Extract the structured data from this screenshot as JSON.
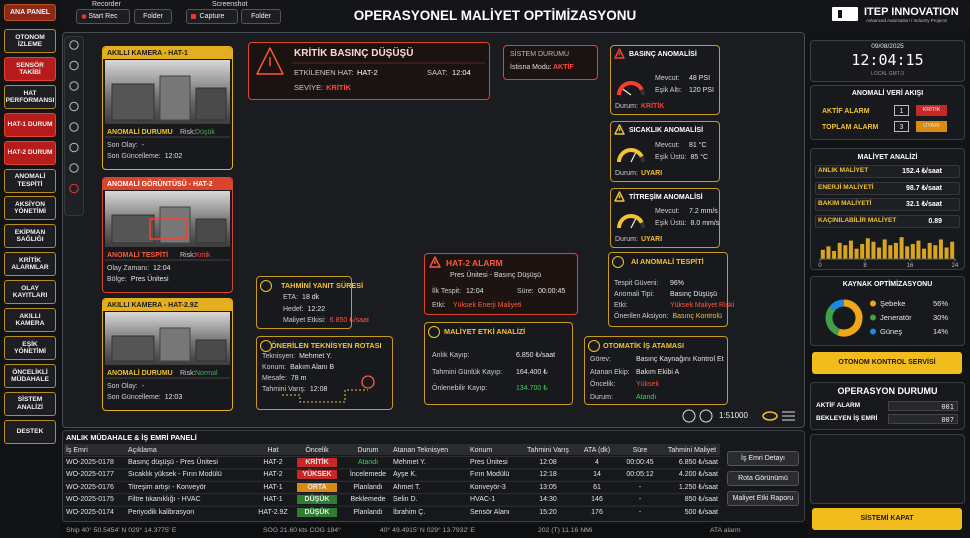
{
  "sidebar": {
    "home": "ANA PANEL",
    "items": [
      {
        "label": "OTONOM İZLEME",
        "highlight": false
      },
      {
        "label": "SENSÖR TAKİBİ",
        "highlight": true
      },
      {
        "label": "HAT PERFORMANSI",
        "highlight": false
      },
      {
        "label": "HAT-1 DURUM",
        "highlight": true
      },
      {
        "label": "HAT-2 DURUM",
        "highlight": true
      },
      {
        "label": "ANOMALİ TESPİTİ",
        "highlight": false
      },
      {
        "label": "AKSİYON YÖNETİMİ",
        "highlight": false
      },
      {
        "label": "EKİPMAN SAĞLIĞI",
        "highlight": false
      },
      {
        "label": "KRİTİK ALARMLAR",
        "highlight": false
      },
      {
        "label": "OLAY KAYITLARI",
        "highlight": false
      },
      {
        "label": "AKILLI KAMERA",
        "highlight": false
      },
      {
        "label": "EŞİK YÖNETİMİ",
        "highlight": false
      },
      {
        "label": "ÖNCELİKLİ MÜDAHALE",
        "highlight": false
      },
      {
        "label": "SİSTEM ANALİZİ",
        "highlight": false
      },
      {
        "label": "DESTEK",
        "highlight": false
      }
    ]
  },
  "toolbar": {
    "recorder": {
      "title": "Recorder",
      "start": "Start Rec",
      "folder": "Folder"
    },
    "screenshot": {
      "title": "Screenshot",
      "capture": "Capture",
      "folder": "Folder"
    }
  },
  "title": "OPERASYONEL MALİYET OPTİMİZASYONU",
  "brand": {
    "name": "ITEP INNOVATION",
    "tagline": "Advanced Automation / Industry Projects"
  },
  "cameras": [
    {
      "title": "AKILLI KAMERA - HAT-1",
      "status": "ANOMALİ DURUMU",
      "risk_label": "Risk:",
      "risk": "Düşük",
      "risk_color": "#4caf50",
      "tone": "#e3ae1f",
      "fields": [
        {
          "label": "Son Olay:",
          "value": "-"
        },
        {
          "label": "Son Güncelleme:",
          "value": "12:02"
        }
      ]
    },
    {
      "title": "ANOMALİ GÖRÜNTÜSÜ - HAT-2",
      "status": "ANOMALİ TESPİTİ",
      "risk_label": "Risk:",
      "risk": "Kritik",
      "risk_color": "#ff4a3a",
      "tone": "#d9452c",
      "fields": [
        {
          "label": "Olay Zamanı:",
          "value": "12:04"
        },
        {
          "label": "Bölge:",
          "value": "Pres Ünitesi"
        }
      ]
    },
    {
      "title": "AKILLI KAMERA - HAT-2.9Z",
      "status": "ANOMALİ DURUMU",
      "risk_label": "Risk:",
      "risk": "Normal",
      "risk_color": "#4caf50",
      "tone": "#e3ae1f",
      "fields": [
        {
          "label": "Son Olay:",
          "value": "-"
        },
        {
          "label": "Son Güncelleme:",
          "value": "12:03"
        }
      ]
    }
  ],
  "critical": {
    "title": "KRİTİK BASINÇ DÜŞÜŞÜ",
    "line_label": "ETKİLENEN HAT:",
    "line": "HAT-2",
    "time_label": "SAAT:",
    "time": "12:04",
    "level_label": "SEVİYE:",
    "level": "KRİTİK"
  },
  "system": {
    "title": "SİSTEM DURUMU",
    "mode_label": "İstisna Modu:",
    "mode": "AKTİF"
  },
  "sensors": [
    {
      "title": "BASINÇ ANOMALİSİ",
      "fields": [
        {
          "label": "Mevcut:",
          "value": "48 PSI"
        },
        {
          "label": "Eşik Altı:",
          "value": "120 PSI"
        }
      ],
      "status_label": "Durum:",
      "status": "KRİTİK",
      "color": "#ff3b2f"
    },
    {
      "title": "SICAKLIK ANOMALİSİ",
      "fields": [
        {
          "label": "Mevcut:",
          "value": "81 °C"
        },
        {
          "label": "Eşik Üstü:",
          "value": "85 °C"
        }
      ],
      "status_label": "Durum:",
      "status": "UYARI",
      "color": "#f2c230"
    },
    {
      "title": "TİTREŞİM ANOMALİSİ",
      "fields": [
        {
          "label": "Mevcut:",
          "value": "7.2 mm/s"
        },
        {
          "label": "Eşik Üstü:",
          "value": "8.0 mm/s"
        }
      ],
      "status_label": "Durum:",
      "status": "UYARI",
      "color": "#f2c230"
    }
  ],
  "alarm": {
    "title": "HAT-2 ALARM",
    "subtitle": "Pres Ünitesi - Basınç Düşüşü",
    "first_label": "İlk Tespit:",
    "first": "12:04",
    "duration_label": "Süre:",
    "duration": "00:00:45",
    "impact_label": "Etki:",
    "impact": "Yüksek Enerji Maliyeti"
  },
  "ai": {
    "title": "AI ANOMALİ TESPİTİ",
    "fields": [
      {
        "label": "Tespit Güveni:",
        "value": "96%"
      },
      {
        "label": "Anomali Tipi:",
        "value": "Basınç Düşüşü"
      },
      {
        "label": "Etki:",
        "value": "Yüksek Maliyet Riski",
        "color": "#ff5a3a"
      },
      {
        "label": "Önerilen Aksiyon:",
        "value": "Basınç Kontrolü",
        "color": "#f2c230"
      }
    ]
  },
  "eta": {
    "title": "TAHMİNİ YANIT SÜRESİ",
    "fields": [
      {
        "label": "ETA:",
        "value": "18 dk"
      },
      {
        "label": "Hedef:",
        "value": "12:22"
      },
      {
        "label": "Maliyet Etkisi:",
        "value": "6.850 ₺/saat",
        "color": "#ff5a3a"
      }
    ]
  },
  "route": {
    "title": "ÖNERİLEN TEKNİSYEN ROTASI",
    "fields": [
      {
        "label": "Teknisyen:",
        "value": "Mehmet Y."
      },
      {
        "label": "Konum:",
        "value": "Bakım Alanı B"
      },
      {
        "label": "Mesafe:",
        "value": "78 m"
      },
      {
        "label": "Tahmini Varış:",
        "value": "12:08"
      }
    ]
  },
  "cost_impact": {
    "title": "MALİYET ETKİ ANALİZİ",
    "fields": [
      {
        "label": "Anlık Kayıp:",
        "value": "6.850 ₺/saat"
      },
      {
        "label": "Tahmini Günlük Kayıp:",
        "value": "164.400 ₺"
      },
      {
        "label": "Önlenebilir Kayıp:",
        "value": "134.700 ₺",
        "color": "#39d353"
      }
    ]
  },
  "assignment": {
    "title": "OTOMATİK İŞ ATAMASI",
    "fields": [
      {
        "label": "Görev:",
        "value": "Basınç Kaynağını Kontrol Et"
      },
      {
        "label": "Atanan Ekip:",
        "value": "Bakım Ekibi A"
      },
      {
        "label": "Öncelik:",
        "value": "Yüksek",
        "color": "#ff4a3a"
      },
      {
        "label": "Durum:",
        "value": "Atandı",
        "color": "#39d353"
      }
    ]
  },
  "map": {
    "scale": "1:51000"
  },
  "clock": {
    "date": "09/08/2025",
    "time": "12:04:15",
    "zone": "LOCAL GMT-3"
  },
  "feed": {
    "title": "ANOMALİ VERİ AKIŞI",
    "rows": [
      {
        "label": "AKTİF ALARM",
        "count": "1",
        "state": "KRİTİK",
        "color": "#c62828"
      },
      {
        "label": "TOPLAM ALARM",
        "count": "3",
        "state": "UYARI",
        "color": "#d98a12"
      }
    ]
  },
  "cost": {
    "title": "MALİYET ANALİZİ",
    "rows": [
      {
        "label": "ANLIK MALİYET",
        "value": "152.4 ₺/saat"
      },
      {
        "label": "ENERJİ MALİYETİ",
        "value": "98.7 ₺/saat"
      },
      {
        "label": "BAKIM MALİYETİ",
        "value": "32.1 ₺/saat"
      },
      {
        "label": "KAÇINILABİLİR MALİYET",
        "value": "0.89"
      }
    ],
    "trend": {
      "type": "bar",
      "x": [
        0,
        1,
        2,
        3,
        4,
        5,
        6,
        7,
        8,
        9,
        10,
        11,
        12,
        13,
        14,
        15,
        16,
        17,
        18,
        19,
        20,
        21,
        22,
        23
      ],
      "values": [
        40,
        55,
        35,
        70,
        60,
        80,
        45,
        65,
        90,
        75,
        50,
        85,
        60,
        70,
        95,
        55,
        65,
        80,
        45,
        70,
        60,
        85,
        50,
        75
      ],
      "xlim": [
        0,
        24
      ],
      "xticks": [
        0,
        8,
        16,
        24
      ],
      "ylim": [
        0,
        100
      ],
      "color": "#d9a520"
    }
  },
  "sources": {
    "type": "pie",
    "title": "KAYNAK OPTİMİZASYONU",
    "categories": [
      "Şebeke",
      "Jeneratör",
      "Güneş"
    ],
    "values": [
      56,
      30,
      14
    ],
    "value_labels": [
      "56%",
      "30%",
      "14%"
    ],
    "colors": [
      "#f0a818",
      "#43a047",
      "#1e88e5"
    ]
  },
  "autonomy_button": "OTONOM KONTROL SERVİSİ",
  "operations": {
    "title": "OPERASYON DURUMU",
    "rows": [
      {
        "label": "AKTİF ALARM",
        "value": "001"
      },
      {
        "label": "BEKLEYEN İŞ EMRİ",
        "value": "007"
      }
    ]
  },
  "shutdown": "SİSTEMİ KAPAT",
  "work_orders": {
    "title": "ANLIK MÜDAHALE & İŞ EMRİ PANELİ",
    "columns": [
      "İş Emri",
      "Açıklama",
      "Hat",
      "Öncelik",
      "Durum",
      "Atanan Teknisyen",
      "Konum",
      "Tahmini Varış",
      "ATA (dk)",
      "Süre",
      "Tahmini Maliyet"
    ],
    "rows": [
      [
        "WO-2025-0178",
        "Basınç düşüşü - Pres Ünitesi",
        "HAT-2",
        "KRİTİK",
        "Atandı",
        "Mehmet Y.",
        "Pres Ünitesi",
        "12:08",
        "4",
        "00:00:45",
        "6.850 ₺/saat"
      ],
      [
        "WO-2025-0177",
        "Sıcaklık yüksek - Fırın Modülü",
        "HAT-2",
        "YÜKSEK",
        "İncelemede",
        "Ayşe K.",
        "Fırın Modülü",
        "12:18",
        "14",
        "00:05:12",
        "4.200 ₺/saat"
      ],
      [
        "WO-2025-0176",
        "Titreşim artışı - Konveyör",
        "HAT-1",
        "ORTA",
        "Planlandı",
        "Ahmet T.",
        "Konveyör-3",
        "13:05",
        "61",
        "-",
        "1.250 ₺/saat"
      ],
      [
        "WO-2025-0175",
        "Filtre tıkanıklığı - HVAC",
        "HAT-1",
        "DÜŞÜK",
        "Beklemede",
        "Selin D.",
        "HVAC-1",
        "14:30",
        "146",
        "-",
        "850 ₺/saat"
      ],
      [
        "WO-2025-0174",
        "Periyodik kalibrasyon",
        "HAT-2.9Z",
        "DÜŞÜK",
        "Planlandı",
        "İbrahim Ç.",
        "Sensör Alanı",
        "15:20",
        "176",
        "-",
        "500 ₺/saat"
      ]
    ],
    "priority_colors": [
      "#c62828",
      "#c62828",
      "#d98a12",
      "#2e7d32",
      "#2e7d32"
    ],
    "status_colors": [
      "#39d353",
      "#e6e6e6",
      "#e6e6e6",
      "#e6e6e6",
      "#e6e6e6"
    ],
    "actions": [
      "İş Emri Detayı",
      "Rota Görünümü",
      "Maliyet Etki Raporu"
    ]
  },
  "status_bar": [
    "Ship 40° 50.5454' N 029° 14.3775' E",
    "SOG 21.60 kts COG 184°",
    "40° 49.4915' N 029° 13.7932' E",
    "202 (T) 11.16 NMi",
    "ATA alarm"
  ]
}
